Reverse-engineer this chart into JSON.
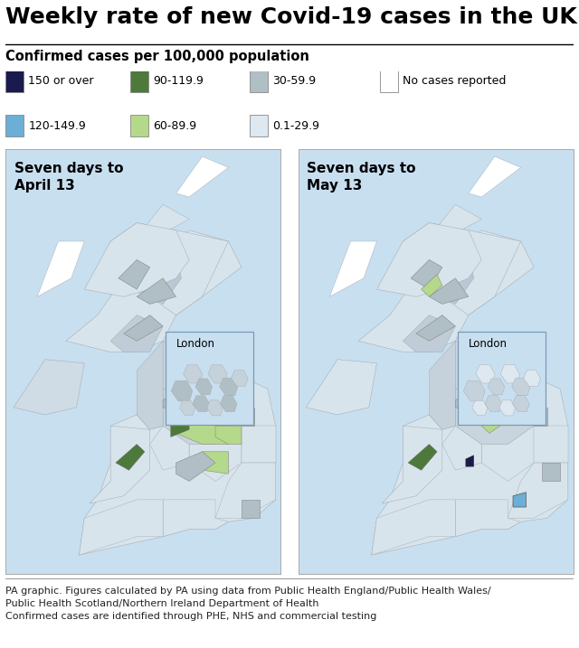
{
  "title": "Weekly rate of new Covid-19 cases in the UK",
  "subtitle": "Confirmed cases per 100,000 population",
  "legend_items": [
    {
      "label": "150 or over",
      "color": "#1a1a4e",
      "row": 0,
      "col": 0
    },
    {
      "label": "120-149.9",
      "color": "#6baed6",
      "row": 1,
      "col": 0
    },
    {
      "label": "90-119.9",
      "color": "#4d7a3a",
      "row": 0,
      "col": 1
    },
    {
      "label": "60-89.9",
      "color": "#b5d98a",
      "row": 1,
      "col": 1
    },
    {
      "label": "30-59.9",
      "color": "#b0bec5",
      "row": 0,
      "col": 2
    },
    {
      "label": "0.1-29.9",
      "color": "#dde8f0",
      "row": 1,
      "col": 2
    },
    {
      "label": "No cases reported",
      "color": "#ffffff",
      "row": 0,
      "col": 3
    }
  ],
  "panel_left_title": "Seven days to\nApril 13",
  "panel_right_title": "Seven days to\nMay 13",
  "footer_lines": [
    "PA graphic. Figures calculated by PA using data from Public Health England/Public Health Wales/",
    "Public Health Scotland/Northern Ireland Department of Health",
    "Confirmed cases are identified through PHE, NHS and commercial testing"
  ],
  "bg_color": "#c8dff0",
  "default_region_color": "#d8e4ec",
  "region_edge_color": "#a0aab0",
  "title_fontsize": 18,
  "subtitle_fontsize": 10.5,
  "legend_fontsize": 9,
  "footer_fontsize": 8,
  "panel_title_fontsize": 11
}
